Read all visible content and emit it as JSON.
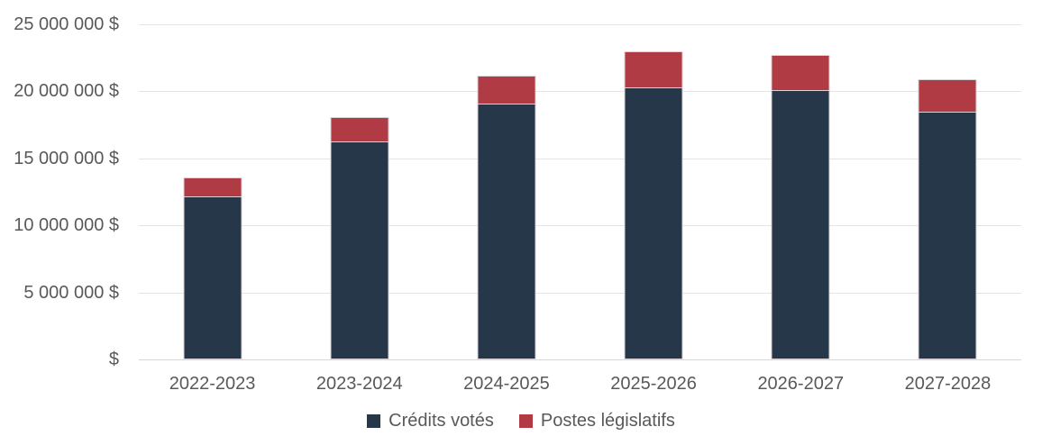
{
  "chart_data": {
    "type": "bar",
    "stacked": true,
    "title": "",
    "xlabel": "",
    "ylabel": "",
    "grid": true,
    "legend_position": "bottom",
    "categories": [
      "2022-2023",
      "2023-2024",
      "2024-2025",
      "2025-2026",
      "2026-2027",
      "2027-2028"
    ],
    "series": [
      {
        "name": "Crédits votés",
        "color": "#26374A",
        "values": [
          12100000,
          16200000,
          19000000,
          20200000,
          20000000,
          18400000
        ]
      },
      {
        "name": "Postes législatifs",
        "color": "#B03B44",
        "values": [
          1500000,
          1900000,
          2200000,
          2800000,
          2750000,
          2500000
        ]
      }
    ],
    "y_axis": {
      "min": 0,
      "max": 25000000,
      "ticks": [
        {
          "value": 25000000,
          "label": "25 000 000 $"
        },
        {
          "value": 20000000,
          "label": "20 000 000 $"
        },
        {
          "value": 15000000,
          "label": "15 000 000 $"
        },
        {
          "value": 10000000,
          "label": "10 000 000 $"
        },
        {
          "value": 5000000,
          "label": "5 000 000 $"
        },
        {
          "value": 0,
          "label": "$"
        }
      ]
    }
  },
  "colors": {
    "credits_votes": "#26374A",
    "postes_legislatifs": "#B03B44",
    "gridline": "#E4E4E4",
    "baseline": "#D7D7D7",
    "axis_text": "#595959",
    "segment_border": "#D9D2D6",
    "background": "#FFFFFF"
  }
}
